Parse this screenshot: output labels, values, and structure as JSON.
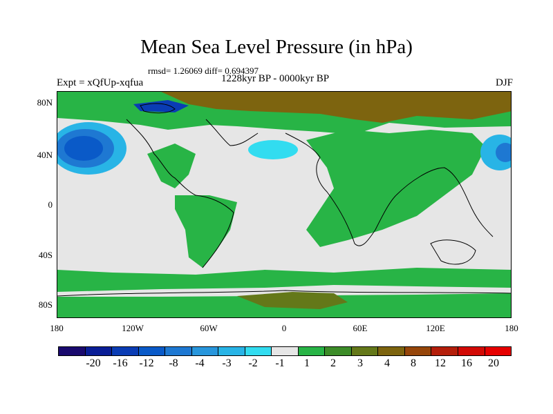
{
  "title": "Mean Sea Level Pressure (in hPa)",
  "stats": "rmsd= 1.26069 diff= 0.694397",
  "period": "1228kyr BP - 0000kyr BP",
  "experiment": "Expt = xQfUp-xqfua",
  "season": "DJF",
  "lat_labels": [
    "80N",
    "40N",
    "0",
    "40S",
    "80S"
  ],
  "lon_labels": [
    "180",
    "120W",
    "60W",
    "0",
    "60E",
    "120E",
    "180"
  ],
  "colorbar": {
    "labels": [
      "-20",
      "-16",
      "-12",
      "-8",
      "-4",
      "-3",
      "-2",
      "-1",
      "1",
      "2",
      "3",
      "4",
      "8",
      "12",
      "16",
      "20"
    ],
    "colors": [
      "#1a0a6e",
      "#0a1e96",
      "#0a3cb4",
      "#0a5ac8",
      "#1e78d2",
      "#2896dc",
      "#28b4e6",
      "#32dcf0",
      "#e6e6e6",
      "#28b446",
      "#3c8c28",
      "#647819",
      "#7d640f",
      "#96460a",
      "#b41e0a",
      "#d20a05",
      "#e60000"
    ]
  }
}
